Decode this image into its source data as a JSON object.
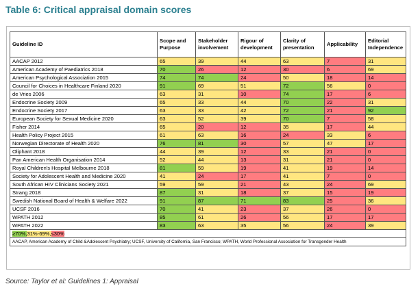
{
  "title": "Table 6: Critical appraisal domain scores",
  "table": {
    "columns": [
      "Guideline ID",
      "Scope and Purpose",
      "Stakeholder involvement",
      "Rigour of development",
      "Clarity of presentation",
      "Applicability",
      "Editorial Independence"
    ],
    "rows": [
      {
        "name": "AACAP 2012",
        "scores": [
          65,
          39,
          44,
          63,
          7,
          31
        ]
      },
      {
        "name": "American Academy of Paediatrics 2018",
        "scores": [
          70,
          26,
          12,
          30,
          6,
          69
        ]
      },
      {
        "name": "American Psychological Association 2015",
        "scores": [
          74,
          74,
          24,
          50,
          18,
          14
        ]
      },
      {
        "name": "Council for Choices in Healthcare Finland 2020",
        "scores": [
          91,
          69,
          51,
          72,
          56,
          0
        ]
      },
      {
        "name": "de Vries 2006",
        "scores": [
          63,
          31,
          10,
          74,
          17,
          6
        ]
      },
      {
        "name": "Endocrine Society 2009",
        "scores": [
          65,
          33,
          44,
          70,
          22,
          31
        ]
      },
      {
        "name": "Endocrine Society 2017",
        "scores": [
          63,
          33,
          42,
          72,
          21,
          92
        ]
      },
      {
        "name": "European Society for Sexual Medicine 2020",
        "scores": [
          63,
          52,
          39,
          70,
          7,
          58
        ]
      },
      {
        "name": "Fisher 2014",
        "scores": [
          65,
          20,
          12,
          35,
          17,
          44
        ]
      },
      {
        "name": "Health Policy Project 2015",
        "scores": [
          61,
          63,
          16,
          24,
          33,
          6
        ]
      },
      {
        "name": "Norwegian Directorate of Health 2020",
        "scores": [
          76,
          81,
          30,
          57,
          47,
          17
        ]
      },
      {
        "name": "Oliphant 2018",
        "scores": [
          44,
          39,
          12,
          33,
          21,
          0
        ]
      },
      {
        "name": "Pan American Health Organisation 2014",
        "scores": [
          52,
          44,
          13,
          31,
          21,
          0
        ]
      },
      {
        "name": "Royal Children's Hospital Melbourne 2018",
        "scores": [
          81,
          59,
          19,
          41,
          19,
          14
        ]
      },
      {
        "name": "Society for Adolescent Health and Medicine 2020",
        "scores": [
          41,
          24,
          17,
          41,
          7,
          0
        ]
      },
      {
        "name": "South African HIV Clinicians Society 2021",
        "scores": [
          59,
          59,
          21,
          43,
          24,
          69
        ]
      },
      {
        "name": "Strang 2018",
        "scores": [
          87,
          31,
          18,
          37,
          15,
          19
        ]
      },
      {
        "name": "Swedish National Board of Health & Welfare 2022",
        "scores": [
          91,
          87,
          71,
          83,
          25,
          36
        ]
      },
      {
        "name": "UCSF 2016",
        "scores": [
          70,
          41,
          23,
          37,
          26,
          0
        ]
      },
      {
        "name": "WPATH 2012",
        "scores": [
          85,
          61,
          26,
          56,
          17,
          17
        ]
      },
      {
        "name": "WPATH 2022",
        "scores": [
          83,
          63,
          35,
          56,
          24,
          39
        ]
      }
    ],
    "legend": [
      {
        "label": "≥70%,",
        "color": "#92d050",
        "min": 70
      },
      {
        "label": "31%-69%,",
        "color": "#ffe680",
        "min": 31
      },
      {
        "label": "≤30%",
        "color": "#ff7c80"
      }
    ],
    "note": "AACAP, American Academy of Child &Adolescent Psychiatry; UCSF, University of California, San Francisco; WPATH, World Professional Association for Transgender Health"
  },
  "source": "Source: Taylor et al: Guidelines 1: Appraisal"
}
